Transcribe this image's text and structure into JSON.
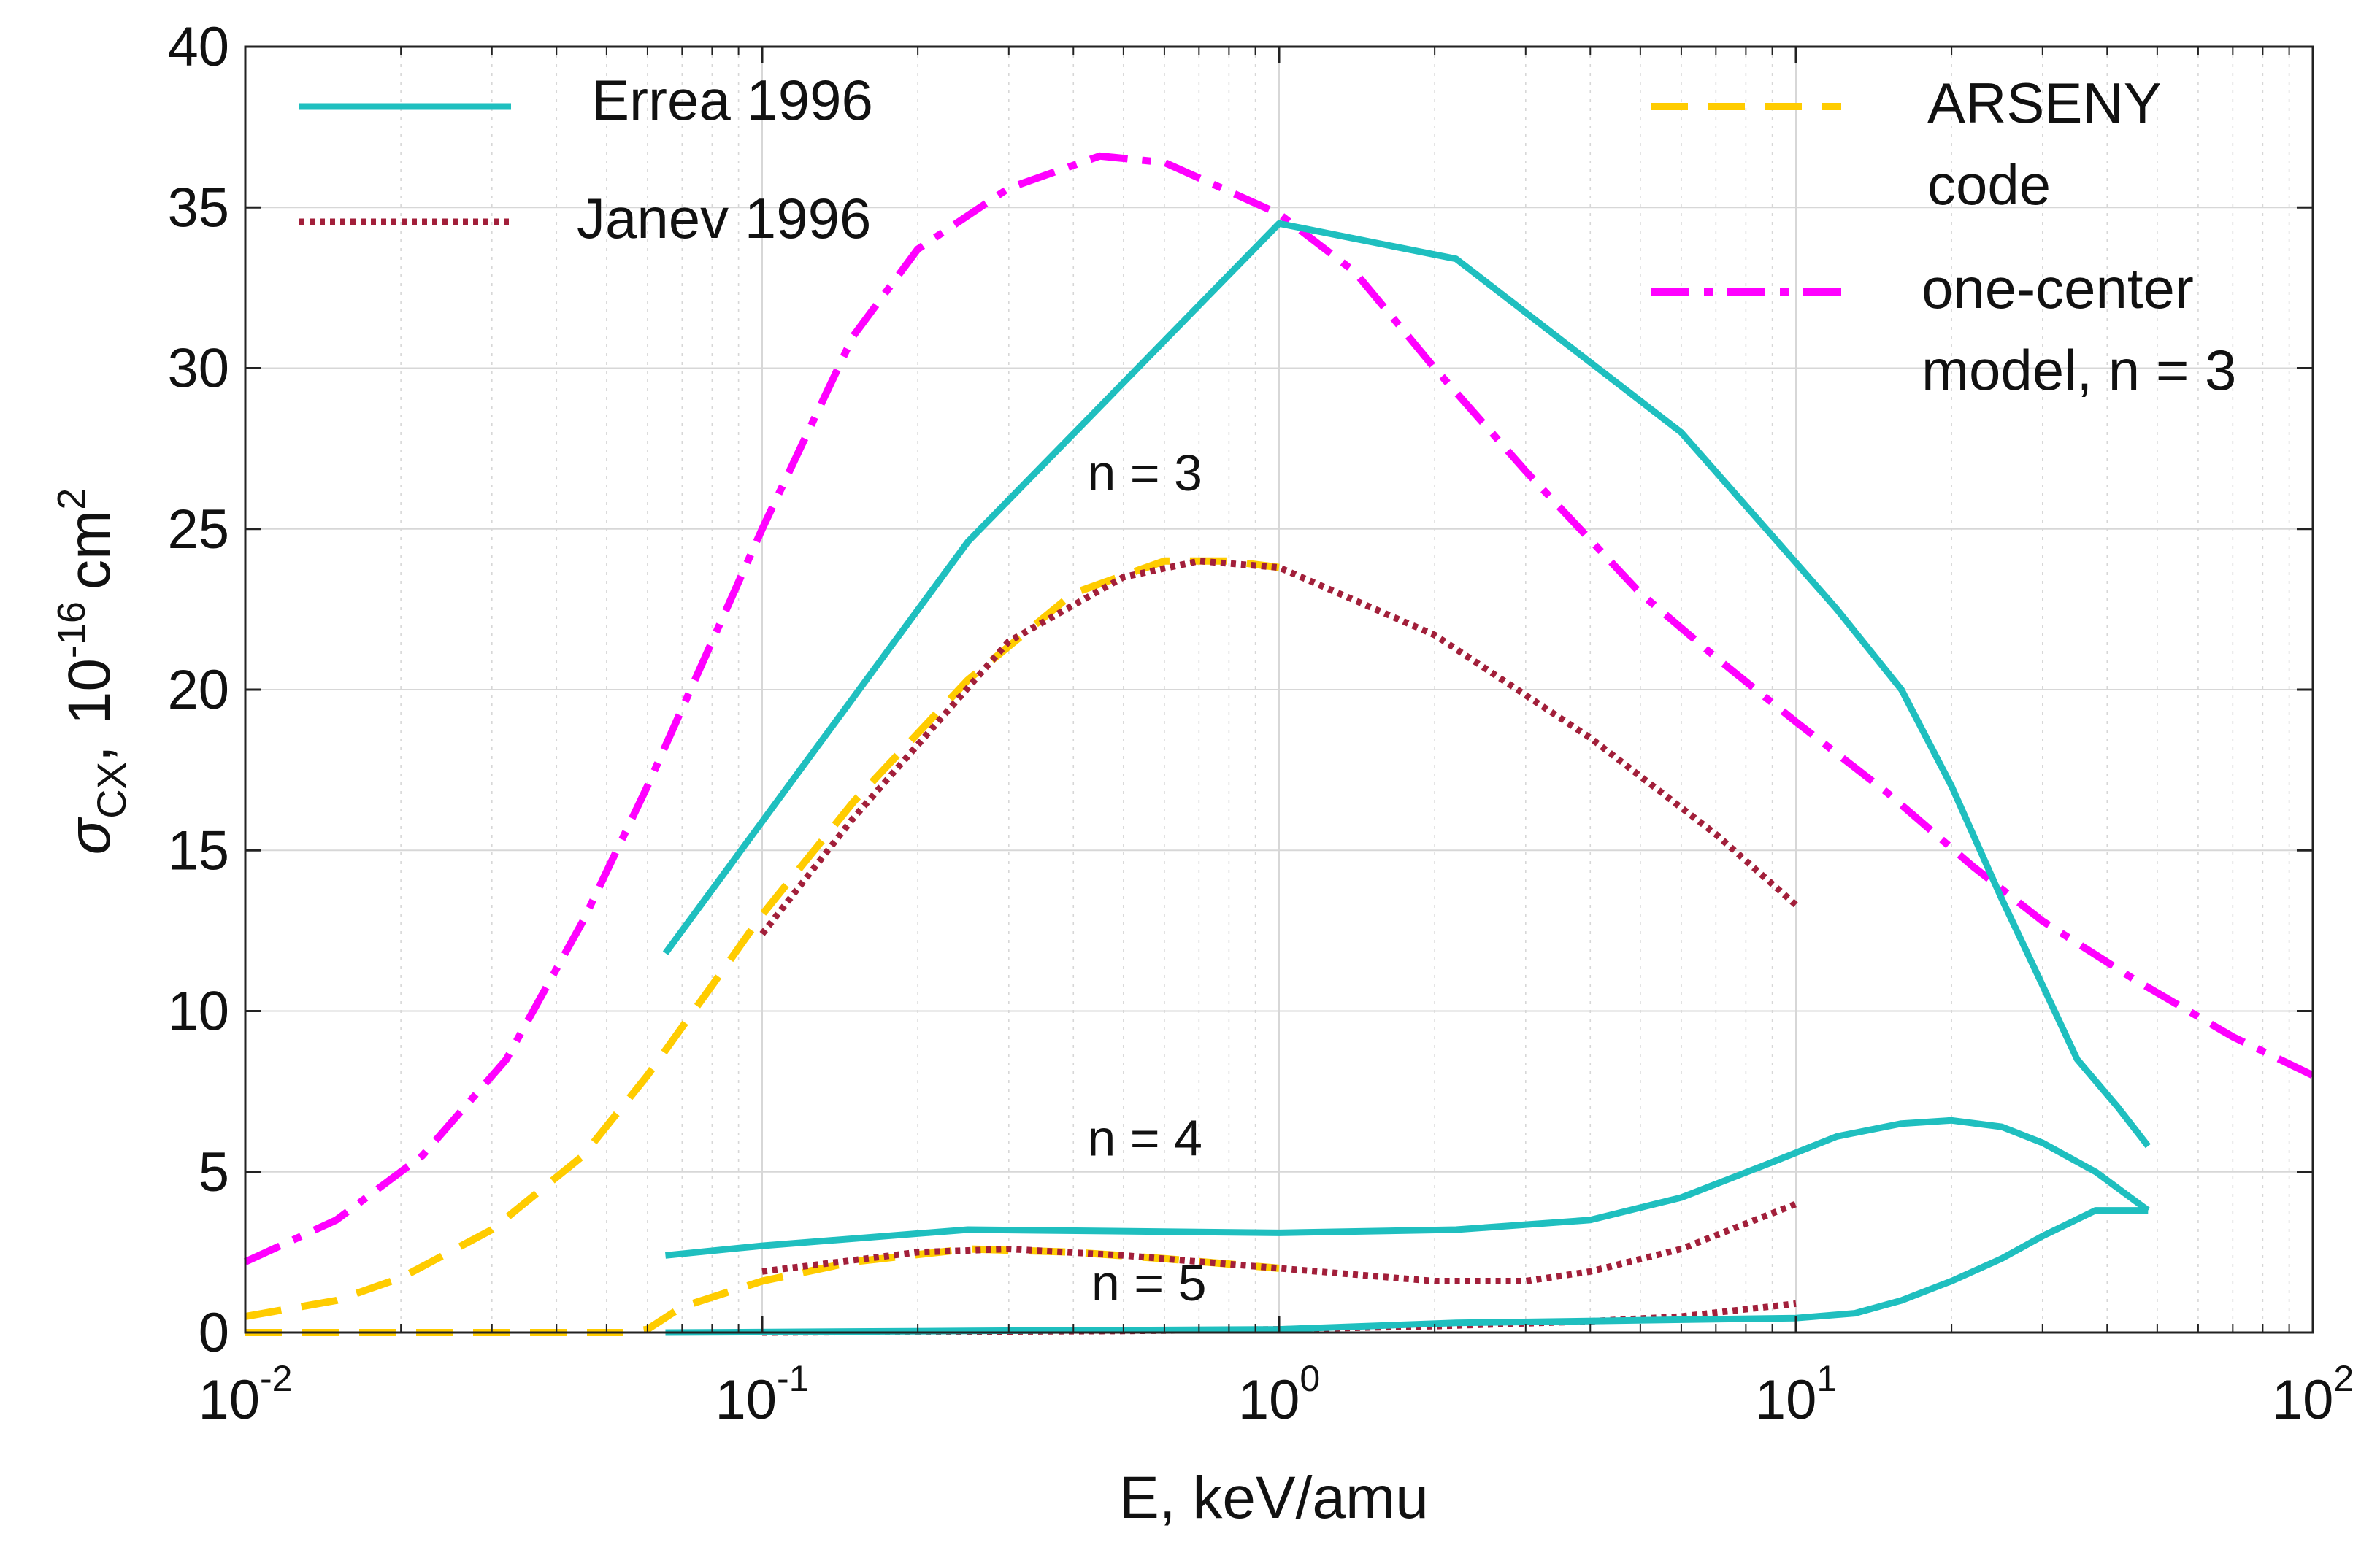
{
  "chart_data": {
    "type": "line",
    "xscale": "log",
    "xlim": [
      0.01,
      100
    ],
    "ylim": [
      0,
      40
    ],
    "xlabel": "E, keV/amu",
    "ylabel": {
      "sigma": "σ",
      "sub": "CX",
      "sep": ",",
      "unit_base": "10",
      "unit_exp": "-16",
      "unit": "cm",
      "unit_pow": "2"
    },
    "x_ticks": [
      {
        "base": "10",
        "exp": "-2",
        "value": 0.01
      },
      {
        "base": "10",
        "exp": "-1",
        "value": 0.1
      },
      {
        "base": "10",
        "exp": "0",
        "value": 1
      },
      {
        "base": "10",
        "exp": "1",
        "value": 10
      },
      {
        "base": "10",
        "exp": "2",
        "value": 100
      }
    ],
    "y_ticks": [
      {
        "label": "0",
        "value": 0
      },
      {
        "label": "5",
        "value": 5
      },
      {
        "label": "10",
        "value": 10
      },
      {
        "label": "15",
        "value": 15
      },
      {
        "label": "20",
        "value": 20
      },
      {
        "label": "25",
        "value": 25
      },
      {
        "label": "30",
        "value": 30
      },
      {
        "label": "35",
        "value": 35
      },
      {
        "label": "40",
        "value": 40
      }
    ],
    "grid": true,
    "legend": [
      {
        "label": "Errea 1996",
        "color": "#1fbfbf",
        "style": "solid"
      },
      {
        "label": "Janev 1996",
        "color": "#a21f3a",
        "style": "dotted"
      },
      {
        "label": "ARSENY",
        "label2": "code",
        "color": "#ffcc00",
        "style": "dashed"
      },
      {
        "label": "one-center",
        "label2": "model, n = 3",
        "color": "#ff00ff",
        "style": "dashdot"
      }
    ],
    "annotations": [
      {
        "text": "n = 3",
        "x": 0.55,
        "y": 26.2
      },
      {
        "text": "n = 4",
        "x": 0.55,
        "y": 5.5
      },
      {
        "text": "n = 5",
        "x": 0.56,
        "y": 1.0
      }
    ],
    "series": [
      {
        "name": "Errea 1996 n=3",
        "style": "solid",
        "color": "#1fbfbf",
        "x": [
          0.065,
          0.25,
          1.0,
          2.2,
          6.0,
          12.0,
          16.0,
          20.0,
          25.0,
          30.0,
          35.0,
          42.0,
          48.0
        ],
        "y": [
          11.8,
          24.6,
          34.5,
          33.4,
          28.0,
          22.5,
          20.0,
          17.0,
          13.5,
          10.8,
          8.5,
          7.0,
          5.8
        ]
      },
      {
        "name": "Errea 1996 n=4",
        "style": "solid",
        "color": "#1fbfbf",
        "x": [
          0.065,
          0.1,
          0.25,
          1.0,
          2.2,
          4.0,
          6.0,
          9.0,
          12.0,
          16.0,
          20.0,
          25.0,
          30.0,
          38.0,
          48.0
        ],
        "y": [
          2.4,
          2.7,
          3.2,
          3.1,
          3.2,
          3.5,
          4.2,
          5.3,
          6.1,
          6.5,
          6.6,
          6.4,
          5.9,
          5.0,
          3.8
        ]
      },
      {
        "name": "Errea 1996 n=5",
        "style": "solid",
        "color": "#1fbfbf",
        "x": [
          0.065,
          0.25,
          1.0,
          2.2,
          6.0,
          10.0,
          13.0,
          16.0,
          20.0,
          25.0,
          30.0,
          38.0,
          48.0
        ],
        "y": [
          0.0,
          0.05,
          0.1,
          0.3,
          0.4,
          0.45,
          0.6,
          1.0,
          1.6,
          2.3,
          3.0,
          3.8,
          3.8
        ]
      },
      {
        "name": "Janev 1996 n=3",
        "style": "dotted",
        "color": "#a21f3a",
        "x": [
          0.1,
          0.15,
          0.3,
          0.5,
          0.7,
          1.0,
          2.0,
          4.0,
          7.0,
          10.0
        ],
        "y": [
          12.4,
          16.0,
          21.5,
          23.5,
          24.0,
          23.8,
          21.7,
          18.5,
          15.5,
          13.3
        ]
      },
      {
        "name": "Janev 1996 n=4",
        "style": "dotted",
        "color": "#a21f3a",
        "x": [
          0.1,
          0.2,
          0.3,
          0.5,
          1.0,
          2.0,
          3.0,
          4.0,
          6.0,
          10.0
        ],
        "y": [
          1.9,
          2.5,
          2.6,
          2.4,
          2.0,
          1.6,
          1.6,
          1.9,
          2.6,
          4.0
        ]
      },
      {
        "name": "Janev 1996 n=5",
        "style": "dotted",
        "color": "#a21f3a",
        "x": [
          0.1,
          0.5,
          1.0,
          2.0,
          4.0,
          6.0,
          10.0
        ],
        "y": [
          0.0,
          0.05,
          0.1,
          0.2,
          0.35,
          0.5,
          0.9
        ]
      },
      {
        "name": "ARSENY code n=3",
        "style": "dashed",
        "color": "#ffcc00",
        "x": [
          0.01,
          0.015,
          0.02,
          0.03,
          0.045,
          0.06,
          0.08,
          0.1,
          0.15,
          0.25,
          0.4,
          0.6,
          0.8,
          1.0
        ],
        "y": [
          0.5,
          1.0,
          1.7,
          3.2,
          5.5,
          8.0,
          10.8,
          13.0,
          16.5,
          20.3,
          23.0,
          24.0,
          24.0,
          23.8
        ]
      },
      {
        "name": "ARSENY code n=4",
        "style": "dashed",
        "color": "#ffcc00",
        "x": [
          0.01,
          0.055,
          0.06,
          0.07,
          0.1,
          0.15,
          0.25,
          0.4,
          0.6,
          1.0
        ],
        "y": [
          0.0,
          0.0,
          0.1,
          0.8,
          1.6,
          2.2,
          2.6,
          2.5,
          2.3,
          2.0
        ]
      },
      {
        "name": "one-center model, n = 3",
        "style": "dashdot",
        "color": "#ff00ff",
        "x": [
          0.01,
          0.015,
          0.022,
          0.032,
          0.045,
          0.06,
          0.08,
          0.1,
          0.15,
          0.2,
          0.3,
          0.45,
          0.6,
          0.8,
          1.0,
          1.4,
          2.0,
          3.0,
          5.0,
          7.0,
          10.0,
          15.0,
          22.0,
          30.0,
          45.0,
          70.0,
          100.0
        ],
        "y": [
          2.2,
          3.5,
          5.5,
          8.5,
          12.8,
          17.0,
          21.5,
          25.0,
          31.0,
          33.7,
          35.6,
          36.6,
          36.4,
          35.5,
          34.8,
          33.0,
          30.0,
          26.8,
          23.0,
          21.0,
          19.0,
          16.8,
          14.5,
          12.8,
          11.0,
          9.2,
          8.0
        ]
      }
    ]
  }
}
